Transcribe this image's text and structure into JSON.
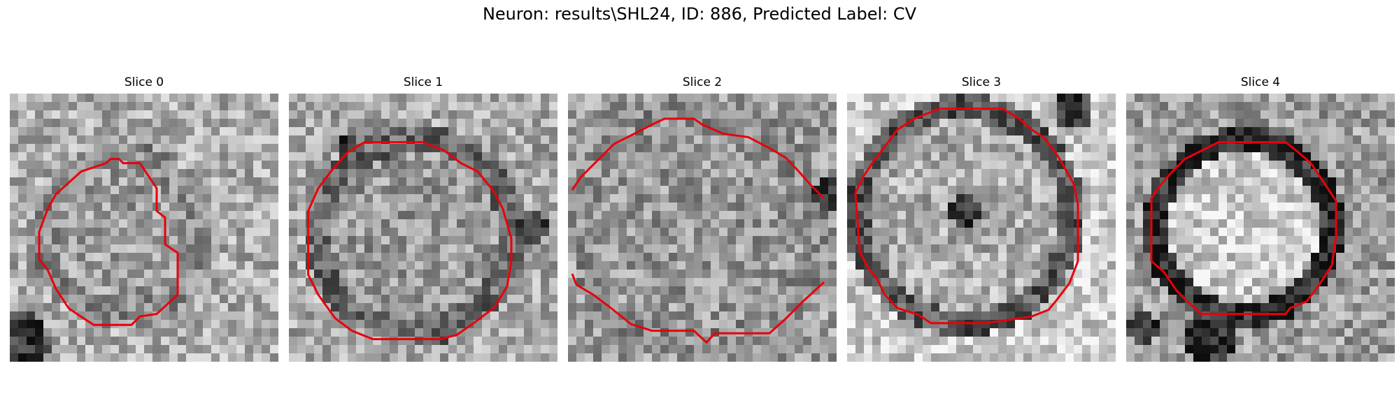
{
  "figure": {
    "title": "Neuron: results\\SHL24, ID: 886, Predicted Label: CV",
    "contour_color": "#e8000b",
    "colormap": "gray",
    "panels": [
      {
        "title": "Slice 0"
      },
      {
        "title": "Slice 1"
      },
      {
        "title": "Slice 2"
      },
      {
        "title": "Slice 3"
      },
      {
        "title": "Slice 4"
      }
    ]
  }
}
